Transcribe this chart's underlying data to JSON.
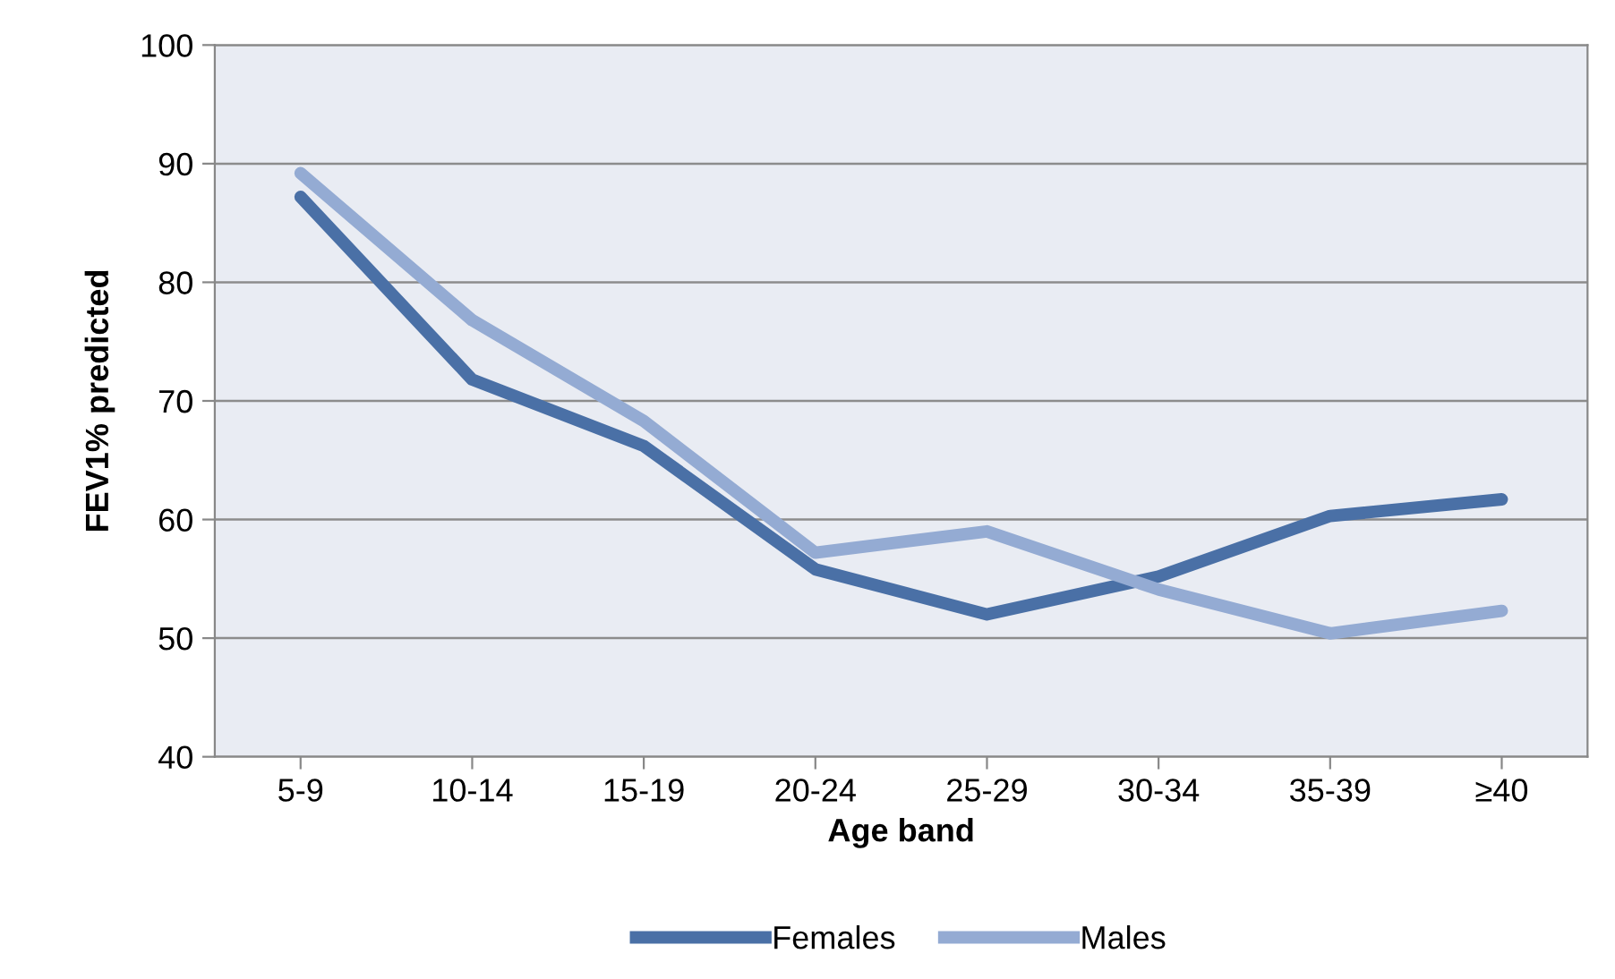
{
  "chart_data": {
    "type": "line",
    "xlabel": "Age band",
    "ylabel": "FEV1% predicted",
    "categories": [
      "5-9",
      "10-14",
      "15-19",
      "20-24",
      "25-29",
      "30-34",
      "35-39",
      "≥40"
    ],
    "series": [
      {
        "name": "Females",
        "color": "#4a70a6",
        "values": [
          87.2,
          71.8,
          66.2,
          55.8,
          52.0,
          55.2,
          60.3,
          61.7
        ]
      },
      {
        "name": "Males",
        "color": "#94abd3",
        "values": [
          89.2,
          76.8,
          68.3,
          57.2,
          59.0,
          54.1,
          50.4,
          52.3
        ]
      }
    ],
    "ylim": [
      40,
      100
    ],
    "yticks": [
      40,
      50,
      60,
      70,
      80,
      90,
      100
    ],
    "grid": "y",
    "legend": "bottom",
    "marker": "none",
    "line_style": "solid"
  }
}
